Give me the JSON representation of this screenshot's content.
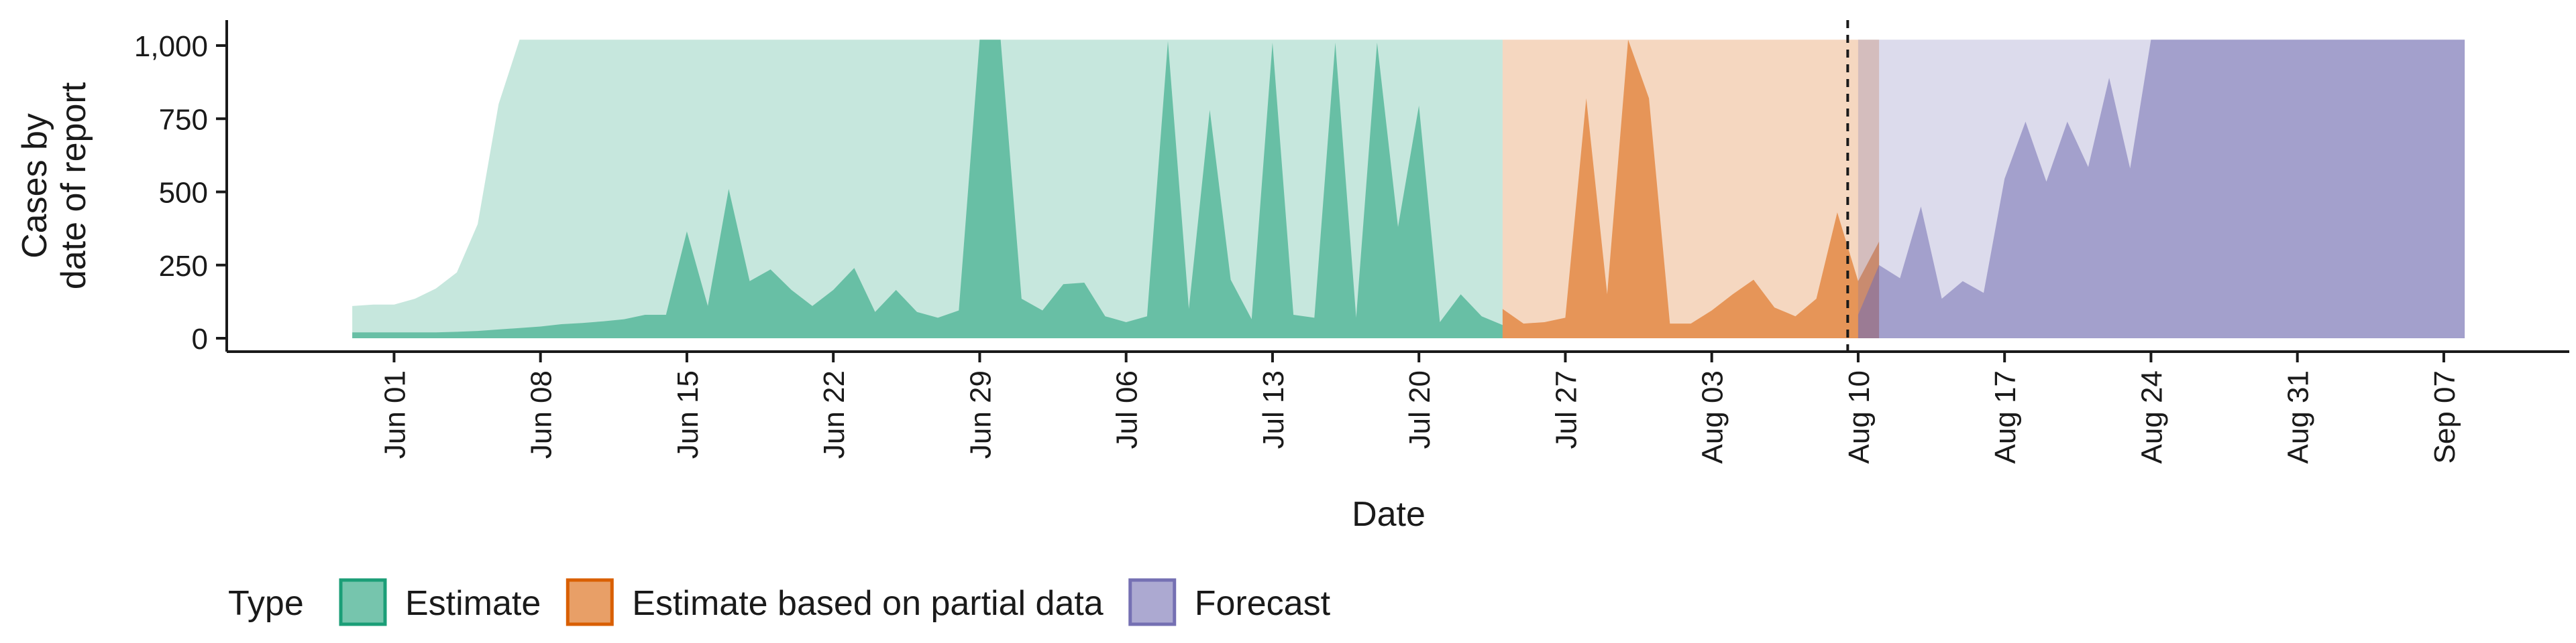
{
  "chart_data": {
    "type": "area",
    "xlabel": "Date",
    "ylabel": [
      "Cases by",
      "date of report"
    ],
    "ylim": [
      0,
      1020
    ],
    "yticks": [
      0,
      250,
      500,
      750,
      1000
    ],
    "ytick_labels": [
      "0",
      "250",
      "500",
      "750",
      "1,000"
    ],
    "xlim": [
      "2020-05-24",
      "2020-09-13"
    ],
    "xticks": [
      "2020-06-01",
      "2020-06-08",
      "2020-06-15",
      "2020-06-22",
      "2020-06-29",
      "2020-07-06",
      "2020-07-13",
      "2020-07-20",
      "2020-07-27",
      "2020-08-03",
      "2020-08-10",
      "2020-08-17",
      "2020-08-24",
      "2020-08-31",
      "2020-09-07"
    ],
    "xtick_labels": [
      "Jun 01",
      "Jun 08",
      "Jun 15",
      "Jun 22",
      "Jun 29",
      "Jul 06",
      "Jul 13",
      "Jul 20",
      "Jul 27",
      "Aug 03",
      "Aug 10",
      "Aug 17",
      "Aug 24",
      "Aug 31",
      "Sep 07"
    ],
    "vline_date": "2020-08-09",
    "legend": {
      "title": "Type",
      "position": "bottom"
    },
    "series": [
      {
        "name": "Estimate",
        "color": "#1b9e77",
        "start_date": "2020-05-30",
        "median": [
          20,
          20,
          20,
          20,
          20,
          22,
          25,
          30,
          35,
          40,
          48,
          52,
          58,
          65,
          80,
          80,
          365,
          110,
          510,
          195,
          235,
          165,
          110,
          165,
          240,
          90,
          165,
          90,
          70,
          95,
          1020,
          1020,
          135,
          95,
          185,
          190,
          75,
          55,
          75,
          1015,
          100,
          780,
          200,
          65,
          1010,
          80,
          70,
          1010,
          70,
          1010,
          380,
          795,
          55,
          150,
          75,
          45
        ],
        "upper": [
          110,
          115,
          115,
          135,
          170,
          225,
          390,
          800,
          1020,
          1020,
          1020,
          1020,
          1020,
          1020,
          1020,
          1020,
          1020,
          1020,
          1020,
          1020,
          1020,
          1020,
          1020,
          1020,
          1020,
          1020,
          1020,
          1020,
          1020,
          1020,
          1020,
          1020,
          1020,
          1020,
          1020,
          1020,
          1020,
          1020,
          1020,
          1020,
          1020,
          1020,
          1020,
          1020,
          1020,
          1020,
          1020,
          1020,
          1020,
          1020,
          1020,
          1020,
          1020,
          1020,
          1020,
          1020
        ]
      },
      {
        "name": "Estimate based on partial data",
        "color": "#d95f02",
        "start_date": "2020-07-24",
        "median": [
          100,
          50,
          55,
          70,
          820,
          150,
          1020,
          820,
          50,
          50,
          95,
          150,
          200,
          105,
          75,
          135,
          430,
          195,
          330
        ],
        "upper": [
          1020,
          1020,
          1020,
          1020,
          1020,
          1020,
          1020,
          1020,
          1020,
          1020,
          1020,
          1020,
          1020,
          1020,
          1020,
          1020,
          1020,
          1020,
          1020
        ]
      },
      {
        "name": "Forecast",
        "color": "#7570b3",
        "start_date": "2020-08-10",
        "median": [
          80,
          250,
          205,
          450,
          135,
          195,
          155,
          545,
          740,
          535,
          740,
          585,
          890,
          580,
          1020,
          1020,
          1020,
          1020,
          1020,
          1020,
          1020,
          1020,
          1020,
          1020,
          1020,
          1020,
          1020,
          1020,
          1020,
          1020
        ],
        "upper": [
          1020,
          1020,
          1020,
          1020,
          1020,
          1020,
          1020,
          1020,
          1020,
          1020,
          1020,
          1020,
          1020,
          1020,
          1020,
          1020,
          1020,
          1020,
          1020,
          1020,
          1020,
          1020,
          1020,
          1020,
          1020,
          1020,
          1020,
          1020,
          1020,
          1020
        ]
      }
    ]
  }
}
